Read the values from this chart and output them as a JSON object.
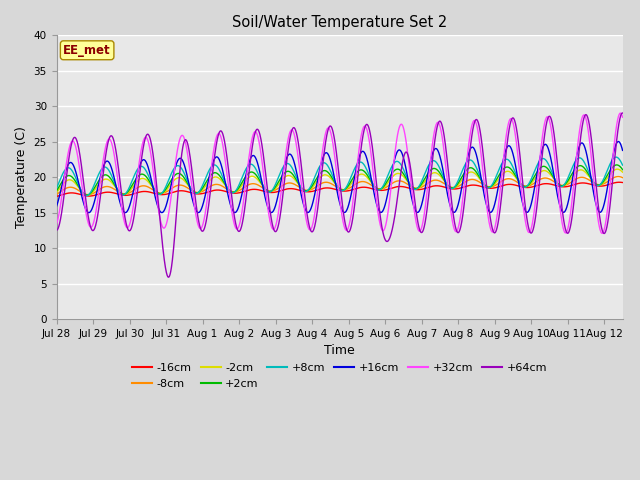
{
  "title": "Soil/Water Temperature Set 2",
  "xlabel": "Time",
  "ylabel": "Temperature (C)",
  "ylim": [
    0,
    40
  ],
  "yticks": [
    0,
    5,
    10,
    15,
    20,
    25,
    30,
    35,
    40
  ],
  "annotation_text": "EE_met",
  "annotation_color": "#8B0000",
  "annotation_bg": "#FFFF99",
  "annotation_border": "#AA8800",
  "bg_color": "#D8D8D8",
  "plot_bg": "#E8E8E8",
  "colors": {
    "-16cm": "#FF0000",
    "-8cm": "#FF8C00",
    "-2cm": "#DDDD00",
    "+2cm": "#00BB00",
    "+8cm": "#00BBBB",
    "+16cm": "#0000DD",
    "+32cm": "#FF44FF",
    "+64cm": "#9900BB"
  },
  "xtick_labels": [
    "Jul 28",
    "Jul 29",
    "Jul 30",
    "Jul 31",
    "Aug 1",
    "Aug 2",
    "Aug 3",
    "Aug 4",
    "Aug 5",
    "Aug 6",
    "Aug 7",
    "Aug 8",
    "Aug 9",
    "Aug 10",
    "Aug 11",
    "Aug 12"
  ],
  "xtick_positions": [
    0,
    1,
    2,
    3,
    4,
    5,
    6,
    7,
    8,
    9,
    10,
    11,
    12,
    13,
    14,
    15
  ]
}
